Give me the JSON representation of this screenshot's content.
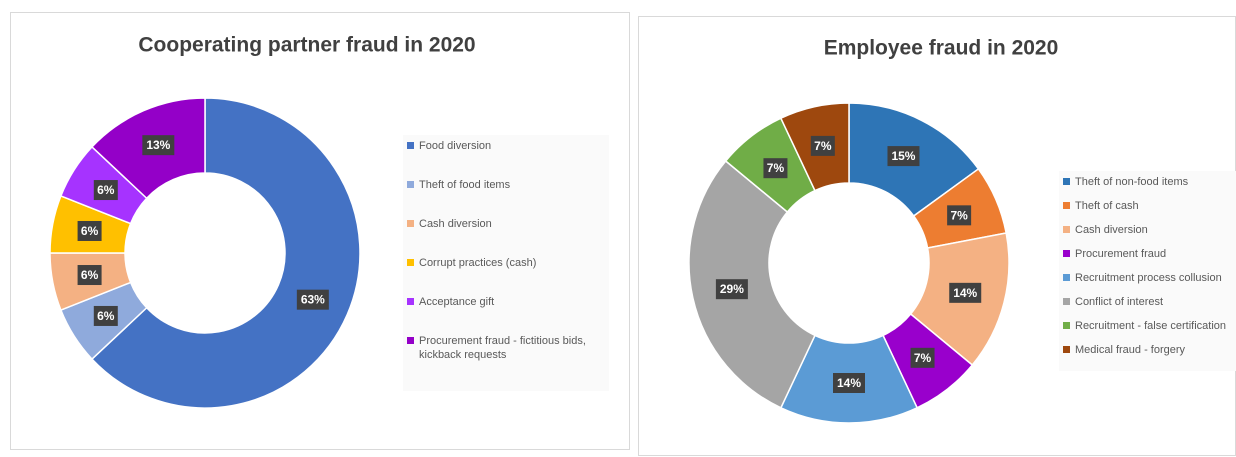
{
  "chart_data": [
    {
      "type": "donut",
      "title": "Cooperating partner fraud in 2020",
      "categories": [
        "Food diversion",
        "Theft of food items",
        "Cash diversion",
        "Corrupt practices (cash)",
        "Acceptance gift",
        "Procurement fraud - fictitious bids, kickback requests"
      ],
      "values": [
        63,
        6,
        6,
        6,
        6,
        13
      ],
      "value_labels": [
        "63%",
        "6%",
        "6%",
        "6%",
        "6%",
        "13%"
      ],
      "colors": [
        "#4472c4",
        "#8faadc",
        "#f4b183",
        "#ffc000",
        "#a633ff",
        "#9400c8"
      ],
      "legend": "right"
    },
    {
      "type": "donut",
      "title": "Employee fraud in 2020",
      "categories": [
        "Theft of non-food items",
        "Theft of cash",
        "Cash diversion",
        "Procurement fraud",
        "Recruitment process collusion",
        "Conflict of interest",
        "Recruitment - false certification",
        "Medical fraud - forgery"
      ],
      "values": [
        15,
        7,
        14,
        7,
        14,
        29,
        7,
        7
      ],
      "value_labels": [
        "15%",
        "7%",
        "14%",
        "7%",
        "14%",
        "29%",
        "7%",
        "7%"
      ],
      "colors": [
        "#2e75b6",
        "#ed7d31",
        "#f4b183",
        "#9900cc",
        "#5b9bd5",
        "#a5a5a5",
        "#70ad47",
        "#9e480e"
      ],
      "legend": "right"
    }
  ]
}
